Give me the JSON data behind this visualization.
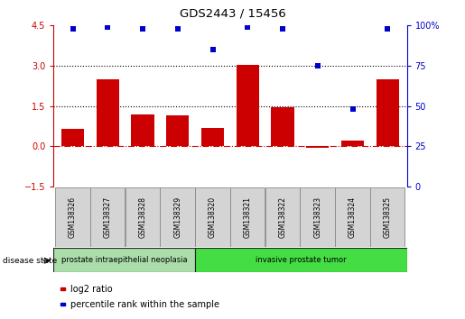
{
  "title": "GDS2443 / 15456",
  "samples": [
    "GSM138326",
    "GSM138327",
    "GSM138328",
    "GSM138329",
    "GSM138320",
    "GSM138321",
    "GSM138322",
    "GSM138323",
    "GSM138324",
    "GSM138325"
  ],
  "log2_ratio": [
    0.65,
    2.5,
    1.2,
    1.15,
    0.7,
    3.05,
    1.45,
    -0.05,
    0.2,
    2.5
  ],
  "percentile_rank": [
    98,
    99,
    98,
    98,
    85,
    99,
    98,
    75,
    48,
    98
  ],
  "bar_color": "#cc0000",
  "dot_color": "#0000cc",
  "ylim_left": [
    -1.5,
    4.5
  ],
  "ylim_right": [
    0,
    100
  ],
  "yticks_left": [
    -1.5,
    0,
    1.5,
    3,
    4.5
  ],
  "yticks_right": [
    0,
    25,
    50,
    75,
    100
  ],
  "disease_groups": [
    {
      "label": "prostate intraepithelial neoplasia",
      "start": 0,
      "end": 4,
      "color": "#aaddaa"
    },
    {
      "label": "invasive prostate tumor",
      "start": 4,
      "end": 10,
      "color": "#44dd44"
    }
  ],
  "disease_state_label": "disease state",
  "legend_items": [
    {
      "label": "log2 ratio",
      "color": "#cc0000"
    },
    {
      "label": "percentile rank within the sample",
      "color": "#0000cc"
    }
  ]
}
